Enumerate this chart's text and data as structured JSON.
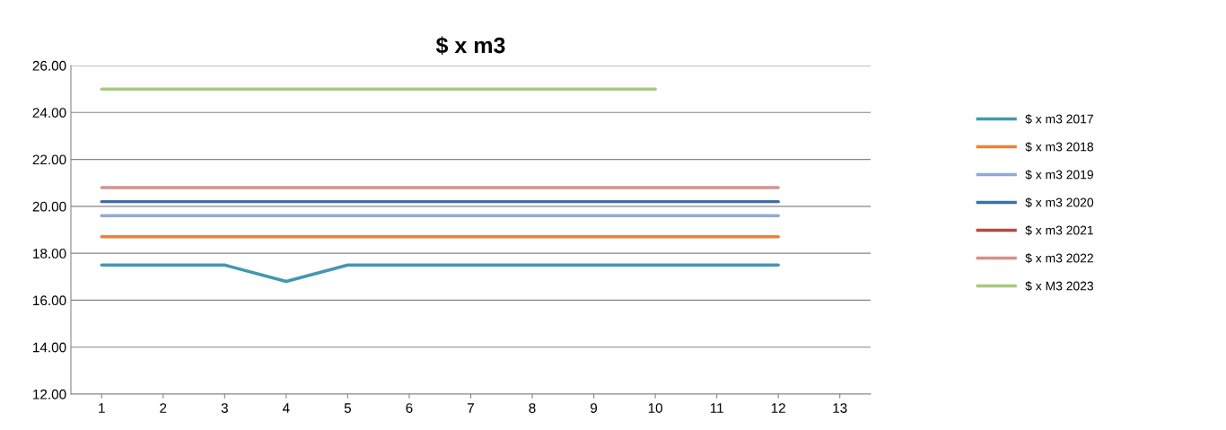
{
  "chart_data": {
    "type": "line",
    "title": "$ x m3",
    "categories": [
      "1",
      "2",
      "3",
      "4",
      "5",
      "6",
      "7",
      "8",
      "9",
      "10",
      "11",
      "12",
      "13"
    ],
    "series": [
      {
        "name": "$ x m3 2017",
        "color": "#4198af",
        "values": [
          17.5,
          17.5,
          17.5,
          16.8,
          17.5,
          17.5,
          17.5,
          17.5,
          17.5,
          17.5,
          17.5,
          17.5,
          null
        ]
      },
      {
        "name": "$ x m3 2018",
        "color": "#e8823a",
        "values": [
          18.7,
          18.7,
          18.7,
          18.7,
          18.7,
          18.7,
          18.7,
          18.7,
          18.7,
          18.7,
          18.7,
          18.7,
          null
        ]
      },
      {
        "name": "$ x m3 2019",
        "color": "#8fa9d6",
        "values": [
          19.6,
          19.6,
          19.6,
          19.6,
          19.6,
          19.6,
          19.6,
          19.6,
          19.6,
          19.6,
          19.6,
          19.6,
          null
        ]
      },
      {
        "name": "$ x m3 2020",
        "color": "#3f6fa6",
        "values": [
          20.2,
          20.2,
          20.2,
          20.2,
          20.2,
          20.2,
          20.2,
          20.2,
          20.2,
          20.2,
          20.2,
          20.2,
          null
        ]
      },
      {
        "name": "$ x m3 2021",
        "color": "#b04a45",
        "values": [
          null,
          null,
          null,
          null,
          null,
          null,
          null,
          null,
          null,
          null,
          null,
          null,
          null
        ]
      },
      {
        "name": "$ x m3 2022",
        "color": "#d4928f",
        "values": [
          20.8,
          20.8,
          20.8,
          20.8,
          20.8,
          20.8,
          20.8,
          20.8,
          20.8,
          20.8,
          20.8,
          20.8,
          null
        ]
      },
      {
        "name": "$ x M3 2023",
        "color": "#a9c97e",
        "values": [
          25,
          25,
          25,
          25,
          25,
          25,
          25,
          25,
          25,
          25,
          null,
          null,
          null
        ]
      }
    ],
    "ylim": [
      12,
      26
    ],
    "yticks": [
      {
        "value": 12,
        "label": "12.00"
      },
      {
        "value": 14,
        "label": "14.00"
      },
      {
        "value": 16,
        "label": "16.00"
      },
      {
        "value": 18,
        "label": "18.00"
      },
      {
        "value": 20,
        "label": "20.00"
      },
      {
        "value": 22,
        "label": "22.00"
      },
      {
        "value": 24,
        "label": "24.00"
      },
      {
        "value": 26,
        "label": "26.00"
      }
    ],
    "grid": "y",
    "legend": "right",
    "marker": "none",
    "line_style": "solid"
  }
}
